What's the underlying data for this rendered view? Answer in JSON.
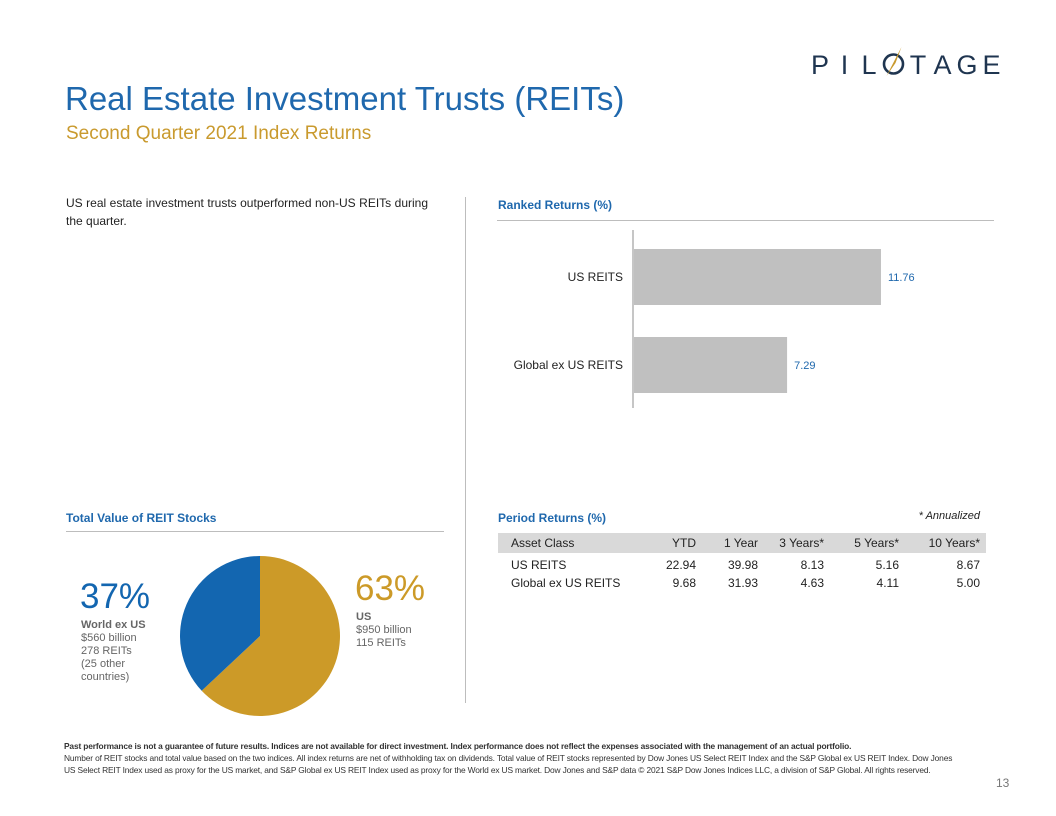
{
  "brand": {
    "name": "PILOTAGE",
    "letters": [
      "P",
      "I",
      "L",
      "O",
      "T",
      "A",
      "G",
      "E"
    ],
    "colors": {
      "navy": "#1f3550",
      "gold": "#c99a2e"
    }
  },
  "header": {
    "title": "Real Estate Investment Trusts (REITs)",
    "subtitle": "Second Quarter 2021 Index Returns"
  },
  "intro": "US real estate investment trusts outperformed non-US REITs during the quarter.",
  "ranked": {
    "title": "Ranked Returns (%)"
  },
  "chart_data": {
    "type": "bar",
    "orientation": "horizontal",
    "title": "Ranked Returns (%)",
    "categories": [
      "US REITS",
      "Global ex US REITS"
    ],
    "values": [
      11.76,
      7.29
    ],
    "labels": [
      "11.76",
      "7.29"
    ],
    "xlim": [
      0,
      15
    ],
    "bar_color": "#c0c0c0",
    "label_color": "#1f68ad",
    "grid": false
  },
  "period": {
    "title": "Period Returns (%)",
    "annotation": "* Annualized",
    "columns": [
      "Asset Class",
      "YTD",
      "1 Year",
      "3 Years*",
      "5 Years*",
      "10 Years*"
    ],
    "rows": [
      [
        "US REITS",
        "22.94",
        "39.98",
        "8.13",
        "5.16",
        "8.67"
      ],
      [
        "Global ex US REITS",
        "9.68",
        "31.93",
        "4.63",
        "4.11",
        "5.00"
      ]
    ]
  },
  "total_value": {
    "title": "Total Value of REIT Stocks",
    "pie": {
      "type": "pie",
      "slices": [
        {
          "name": "US",
          "value": 63,
          "color": "#cc9a28"
        },
        {
          "name": "World ex US",
          "value": 37,
          "color": "#1366b0"
        }
      ]
    },
    "world": {
      "pct": "37%",
      "name": "World ex US",
      "value": "$560 billion",
      "count": "278 REITs",
      "note_line1": "(25 other",
      "note_line2": "countries)"
    },
    "us": {
      "pct": "63%",
      "name": "US",
      "value": "$950 billion",
      "count": "115 REITs"
    }
  },
  "footer": {
    "bold": "Past performance is not a guarantee of future results. Indices are not available for direct investment. Index performance does not reflect the expenses associated with the management of an actual portfolio.",
    "text": "Number of REIT stocks and total value based on the two indices. All index returns are net of withholding tax on dividends. Total value of REIT stocks represented by Dow Jones US Select REIT Index and the S&P Global ex US REIT Index. Dow Jones US Select REIT Index used as proxy for the US market, and S&P Global ex US REIT Index used as proxy for the World ex US market. Dow Jones and S&P data © 2021 S&P Dow Jones Indices LLC, a division of S&P Global. All rights reserved."
  },
  "page_number": "13"
}
